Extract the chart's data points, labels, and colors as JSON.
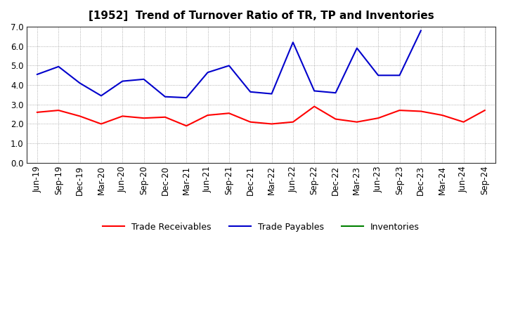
{
  "title": "[1952]  Trend of Turnover Ratio of TR, TP and Inventories",
  "labels": [
    "Jun-19",
    "Sep-19",
    "Dec-19",
    "Mar-20",
    "Jun-20",
    "Sep-20",
    "Dec-20",
    "Mar-21",
    "Jun-21",
    "Sep-21",
    "Dec-21",
    "Mar-22",
    "Jun-22",
    "Sep-22",
    "Dec-22",
    "Mar-23",
    "Jun-23",
    "Sep-23",
    "Dec-23",
    "Mar-24",
    "Jun-24",
    "Sep-24"
  ],
  "trade_receivables": [
    2.6,
    2.7,
    2.4,
    2.0,
    2.4,
    2.3,
    2.35,
    1.9,
    2.45,
    2.55,
    2.1,
    2.0,
    2.1,
    2.9,
    2.25,
    2.1,
    2.3,
    2.7,
    2.65,
    2.45,
    2.1,
    2.7
  ],
  "trade_payables": [
    4.55,
    4.95,
    4.1,
    3.45,
    4.2,
    4.3,
    3.4,
    3.35,
    4.65,
    5.0,
    3.65,
    3.55,
    6.2,
    3.7,
    3.6,
    5.9,
    4.5,
    4.5,
    6.8,
    null,
    null,
    null
  ],
  "inventories": [
    null,
    null,
    null,
    null,
    null,
    null,
    null,
    null,
    null,
    null,
    null,
    null,
    null,
    null,
    null,
    null,
    null,
    null,
    null,
    null,
    null,
    null
  ],
  "tr_color": "#ff0000",
  "tp_color": "#0000cc",
  "inv_color": "#008000",
  "ylim": [
    0.0,
    7.0
  ],
  "yticks": [
    0.0,
    1.0,
    2.0,
    3.0,
    4.0,
    5.0,
    6.0,
    7.0
  ],
  "background_color": "#ffffff",
  "grid_color": "#999999",
  "title_fontsize": 11,
  "tick_fontsize": 8.5,
  "legend_fontsize": 9
}
